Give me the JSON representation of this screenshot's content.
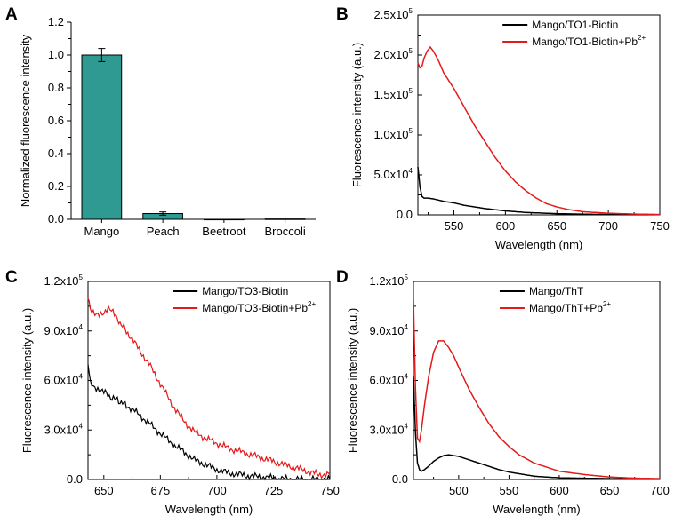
{
  "chart_data": [
    {
      "panel": "A",
      "type": "bar",
      "title": "",
      "xlabel": "",
      "ylabel": "Normalized fluorescence intensity",
      "categories": [
        "Mango",
        "Peach",
        "Beetroot",
        "Broccoli"
      ],
      "values": [
        1.0,
        0.035,
        0.0,
        0.002
      ],
      "errors": [
        0.04,
        0.01,
        0.0,
        0.0
      ],
      "ylim": [
        0,
        1.2
      ],
      "yticks": [
        "0.0",
        "0.2",
        "0.4",
        "0.6",
        "0.8",
        "1.0",
        "1.2"
      ],
      "bar_color": "#2e9a91"
    },
    {
      "panel": "B",
      "type": "line",
      "xlabel": "Wavelength (nm)",
      "ylabel": "Fluorescence intensity (a.u.)",
      "xlim": [
        515,
        750
      ],
      "ylim": [
        0,
        250000
      ],
      "xticks": [
        "550",
        "600",
        "650",
        "700",
        "750"
      ],
      "yticks": [
        "0.0",
        "5.0x10",
        "1.0x10",
        "1.5x10",
        "2.0x10",
        "2.5x10"
      ],
      "ytick_exp": [
        "",
        "4",
        "5",
        "5",
        "5",
        "5"
      ],
      "series": [
        {
          "name": "Mango/TO1-Biotin",
          "sup": "",
          "color": "#000000",
          "x": [
            515,
            517,
            519,
            521,
            525,
            530,
            540,
            550,
            560,
            580,
            600,
            620,
            650,
            680,
            700,
            750
          ],
          "y": [
            60000,
            35000,
            23000,
            21000,
            21000,
            20000,
            17000,
            15000,
            12000,
            8000,
            5000,
            3000,
            1500,
            800,
            500,
            300
          ]
        },
        {
          "name": "Mango/TO1-Biotin+Pb",
          "sup": "2+",
          "color": "#e41a1a",
          "x": [
            515,
            517,
            519,
            521,
            524,
            527,
            530,
            535,
            540,
            550,
            560,
            570,
            580,
            590,
            600,
            610,
            620,
            630,
            640,
            650,
            660,
            675,
            700,
            725,
            750
          ],
          "y": [
            190000,
            184000,
            186000,
            196000,
            205000,
            210000,
            205000,
            193000,
            178000,
            158000,
            135000,
            112000,
            92000,
            72000,
            55000,
            41000,
            30000,
            21000,
            14000,
            10000,
            7000,
            4000,
            2000,
            1000,
            500
          ]
        }
      ],
      "legend": "top-right"
    },
    {
      "panel": "C",
      "type": "line",
      "xlabel": "Wavelength (nm)",
      "ylabel": "Fluorescence intensity (a.u.)",
      "xlim": [
        643,
        750
      ],
      "ylim": [
        0,
        120000
      ],
      "xticks": [
        "650",
        "675",
        "700",
        "725",
        "750"
      ],
      "yticks": [
        "0.0",
        "3.0x10",
        "6.0x10",
        "9.0x10",
        "1.2x10"
      ],
      "ytick_exp": [
        "",
        "4",
        "4",
        "4",
        "5"
      ],
      "series": [
        {
          "name": "Mango/TO3-Biotin",
          "sup": "",
          "color": "#000000",
          "x": [
            643,
            644,
            646,
            648,
            650,
            653,
            656,
            660,
            665,
            670,
            675,
            680,
            685,
            690,
            695,
            700,
            705,
            710,
            715,
            720,
            725,
            730,
            735,
            740,
            745,
            750
          ],
          "y": [
            70000,
            60000,
            56000,
            54000,
            53000,
            50000,
            48000,
            45000,
            40000,
            34000,
            28000,
            22000,
            17000,
            12000,
            9000,
            6000,
            4000,
            3000,
            2000,
            1500,
            800,
            300,
            0,
            0,
            0,
            0
          ]
        },
        {
          "name": "Mango/TO3-Biotin+Pb",
          "sup": "2+",
          "color": "#e41a1a",
          "x": [
            643,
            644,
            646,
            648,
            650,
            652,
            654,
            656,
            660,
            665,
            670,
            675,
            680,
            685,
            690,
            695,
            700,
            705,
            710,
            715,
            720,
            725,
            730,
            735,
            740,
            745,
            750
          ],
          "y": [
            110000,
            104000,
            101000,
            100000,
            100000,
            103000,
            101000,
            97000,
            90000,
            80000,
            70000,
            58000,
            46000,
            36000,
            29000,
            25000,
            22000,
            19000,
            17000,
            15000,
            13000,
            11000,
            9000,
            7000,
            5000,
            3000,
            3000
          ]
        }
      ],
      "legend": "top-right"
    },
    {
      "panel": "D",
      "type": "line",
      "xlabel": "Wavelength (nm)",
      "ylabel": "Fluorescence intensity (a.u.)",
      "xlim": [
        455,
        700
      ],
      "ylim": [
        0,
        120000
      ],
      "xticks": [
        "500",
        "550",
        "600",
        "650",
        "700"
      ],
      "yticks": [
        "0.0",
        "3.0x10",
        "6.0x10",
        "9.0x10",
        "1.2x10"
      ],
      "ytick_exp": [
        "",
        "4",
        "4",
        "4",
        "5"
      ],
      "series": [
        {
          "name": "Mango/ThT",
          "sup": "",
          "color": "#000000",
          "x": [
            455,
            457,
            459,
            461,
            463,
            466,
            470,
            475,
            480,
            485,
            490,
            495,
            500,
            510,
            520,
            530,
            540,
            550,
            575,
            600,
            650,
            700
          ],
          "y": [
            63000,
            28000,
            10000,
            6000,
            5000,
            6000,
            8000,
            11000,
            13000,
            14500,
            15000,
            14500,
            14000,
            12000,
            10000,
            8000,
            6000,
            4500,
            2000,
            1000,
            500,
            300
          ]
        },
        {
          "name": "Mango/ThT+Pb",
          "sup": "2+",
          "color": "#e41a1a",
          "x": [
            455,
            457,
            459,
            461,
            463,
            466,
            470,
            475,
            480,
            485,
            490,
            495,
            500,
            510,
            520,
            530,
            540,
            550,
            560,
            575,
            600,
            625,
            650,
            675,
            700
          ],
          "y": [
            110000,
            55000,
            25000,
            23000,
            30000,
            45000,
            62000,
            77000,
            84000,
            84000,
            80000,
            75000,
            68000,
            55000,
            44000,
            34000,
            26000,
            20000,
            15000,
            10000,
            5000,
            3000,
            1500,
            800,
            500
          ]
        }
      ],
      "legend": "top-right"
    }
  ]
}
